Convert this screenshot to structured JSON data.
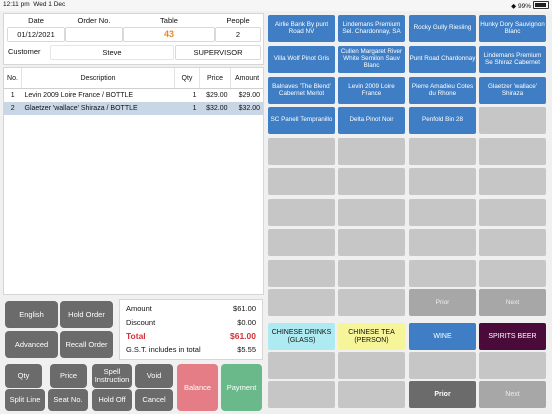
{
  "status": {
    "time": "12:11 pm",
    "date": "Wed 1 Dec",
    "battery": "99%"
  },
  "header": {
    "date_label": "Date",
    "order_label": "Order No.",
    "table_label": "Table",
    "people_label": "People",
    "date_value": "01/12/2021",
    "order_value": "",
    "table_value": "43",
    "people_value": "2",
    "customer_label": "Customer",
    "customer_value": "Steve",
    "staff_value": "SUPERVISOR"
  },
  "items": {
    "columns": [
      "No.",
      "Description",
      "Qty",
      "Price",
      "Amount"
    ],
    "rows": [
      {
        "no": "1",
        "desc": "Levin 2009 Loire France / BOTTLE",
        "qty": "1",
        "price": "$29.00",
        "amount": "$29.00"
      },
      {
        "no": "2",
        "desc": "Glaetzer 'wallace' Shiraza / BOTTLE",
        "qty": "1",
        "price": "$32.00",
        "amount": "$32.00"
      }
    ]
  },
  "buttons": {
    "english": "English",
    "hold_order": "Hold Order",
    "advanced": "Advanced",
    "recall_order": "Recall Order",
    "qty": "Qty",
    "price": "Price",
    "spell": "Spell Instruction",
    "void": "Void",
    "split_line": "Split Line",
    "seat_no": "Seat No.",
    "hold_off": "Hold Off",
    "cancel": "Cancel",
    "balance": "Balance",
    "payment": "Payment"
  },
  "totals": {
    "amount_label": "Amount",
    "amount_value": "$61.00",
    "discount_label": "Discount",
    "discount_value": "$0.00",
    "total_label": "Total",
    "total_value": "$61.00",
    "gst_label": "G.S.T. includes in total",
    "gst_value": "$5.55"
  },
  "products": [
    "Airlie Bank By punt Road NV",
    "Lindemans Premium Sel. Chardonnay, SA",
    "Rocky Gully Riesling",
    "Hunky Dory Sauvignon Blanc",
    "Villa Wolf Pinot Gris",
    "Cullen Margaret River White Semilon Sauv Blanc",
    "Punt Road Chardonnay",
    "Lindemans Premium Se Shiraz Cabernet",
    "Balnaves 'The Blend' Cabernet Merlot",
    "Levin 2009 Loire France",
    "Pierre Amadieu Cotes du Rhone",
    "Glaetzer 'wallace' Shiraza",
    "SC Panell Tempranillo",
    "Delta Pinot Noir",
    "Penfold Bin 28"
  ],
  "product_nav": {
    "prior": "Prior",
    "next": "Next"
  },
  "categories": [
    {
      "label": "CHINESE DRINKS (GLASS)",
      "bg": "#aeeaf2",
      "fg": "#111111"
    },
    {
      "label": "CHINESE TEA (PERSON)",
      "bg": "#f6f59a",
      "fg": "#111111"
    },
    {
      "label": "WINE",
      "bg": "#3f7ec4",
      "fg": "#ffffff"
    },
    {
      "label": "SPIRITS BEER",
      "bg": "#4a0a3a",
      "fg": "#ffffff"
    }
  ],
  "category_nav": {
    "prior": "Prior",
    "next": "Next"
  }
}
